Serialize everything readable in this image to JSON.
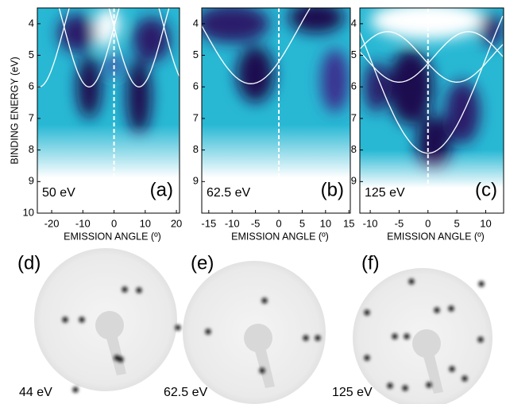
{
  "chart_data": [
    {
      "type": "band-map",
      "label": "(a)",
      "annotation": "50 eV",
      "ylabel": "BINDING ENERGY (eV)",
      "xlabel": "EMISSION ANGLE (º)",
      "xlim": [
        -24.6,
        21
      ],
      "xticks": [
        -20,
        -10,
        0,
        10,
        20
      ],
      "ylim": [
        10,
        3.5
      ],
      "yticks": [
        4,
        5,
        6,
        7,
        8,
        9,
        10
      ]
    },
    {
      "type": "band-map",
      "label": "(b)",
      "annotation": "62.5 eV",
      "xlabel": "EMISSION ANGLE (º)",
      "xlim": [
        -16.5,
        15.3
      ],
      "xticks": [
        -15,
        -10,
        -5,
        0,
        5,
        10,
        15
      ],
      "ylim": [
        10,
        3.5
      ],
      "yticks": [
        4,
        5,
        6,
        7,
        8,
        9
      ]
    },
    {
      "type": "band-map",
      "label": "(c)",
      "annotation": "125 eV",
      "xlabel": "EMISSION ANGLE (º)",
      "xlim": [
        -11.8,
        13.1
      ],
      "xticks": [
        -10,
        -5,
        0,
        5,
        10
      ],
      "ylim": [
        10,
        3.5
      ],
      "yticks": [
        4,
        5,
        6,
        7,
        8,
        9
      ]
    }
  ],
  "leed": [
    {
      "label": "(d)",
      "energy": "44 eV"
    },
    {
      "label": "(e)",
      "energy": "62.5 eV"
    },
    {
      "label": "(f)",
      "energy": "125 eV"
    }
  ]
}
